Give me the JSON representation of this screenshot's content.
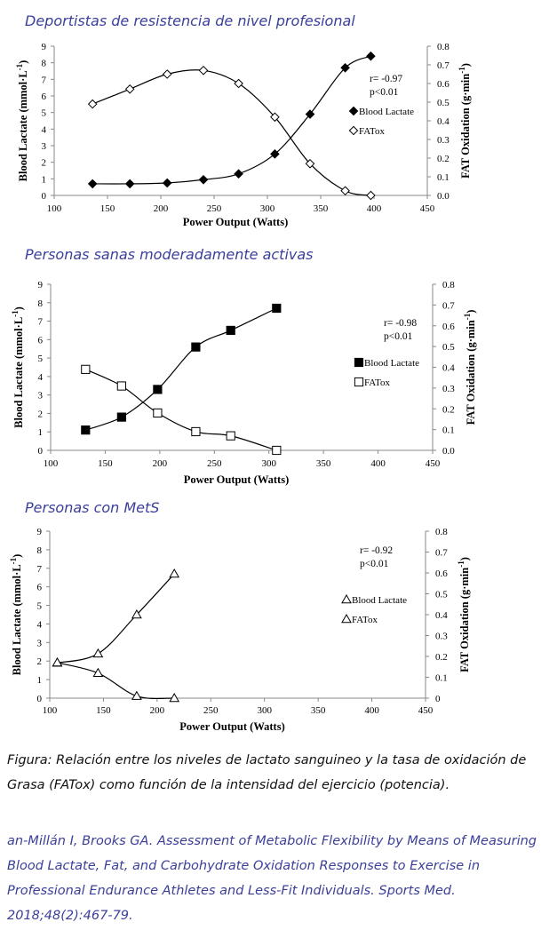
{
  "chart_data": [
    {
      "type": "line",
      "title": "Deportistas de resistencia de nivel profesional",
      "xlabel": "Power Output (Watts)",
      "ylabel": "Blood Lactate (mmol·L-1)",
      "y2label": "FAT Oxidation (g·min-1)",
      "xlim": [
        100,
        450
      ],
      "ylim": [
        0,
        9
      ],
      "y2lim": [
        0,
        0.8
      ],
      "x_ticks": [
        "100",
        "150",
        "200",
        "250",
        "300",
        "350",
        "400",
        "450"
      ],
      "y_ticks": [
        "0",
        "1",
        "2",
        "3",
        "4",
        "5",
        "6",
        "7",
        "8",
        "9"
      ],
      "y2_ticks": [
        "0.0",
        "0.1",
        "0.2",
        "0.3",
        "0.4",
        "0.5",
        "0.6",
        "0.7",
        "0.8"
      ],
      "stats": [
        "r= -0.97",
        "p<0.01"
      ],
      "legend_placement": "right",
      "series": [
        {
          "name": "Blood Lactate",
          "marker": "diamond-filled",
          "axis": "left",
          "x": [
            136,
            171,
            206,
            240,
            273,
            307,
            340,
            373,
            397
          ],
          "y": [
            0.7,
            0.7,
            0.75,
            0.95,
            1.3,
            2.5,
            4.9,
            7.7,
            8.4
          ]
        },
        {
          "name": "FATox",
          "marker": "diamond-open",
          "axis": "right",
          "x": [
            136,
            171,
            206,
            240,
            273,
            307,
            340,
            373,
            397
          ],
          "y": [
            0.49,
            0.57,
            0.65,
            0.67,
            0.6,
            0.42,
            0.17,
            0.025,
            0.0
          ]
        }
      ]
    },
    {
      "type": "line",
      "title": "Personas sanas moderadamente activas",
      "xlabel": "Power Output (Watts)",
      "ylabel": "Blood Lactate (mmol·L-1)",
      "y2label": "FAT Oxidation (g·min-1)",
      "xlim": [
        100,
        450
      ],
      "ylim": [
        0,
        9
      ],
      "y2lim": [
        0,
        0.8
      ],
      "x_ticks": [
        "100",
        "150",
        "200",
        "250",
        "300",
        "350",
        "400",
        "450"
      ],
      "y_ticks": [
        "0",
        "1",
        "2",
        "3",
        "4",
        "5",
        "6",
        "7",
        "8",
        "9"
      ],
      "y2_ticks": [
        "0.0",
        "0.1",
        "0.2",
        "0.3",
        "0.4",
        "0.5",
        "0.6",
        "0.7",
        "0.8"
      ],
      "stats": [
        "r= -0.98",
        "p<0.01"
      ],
      "legend_placement": "right",
      "series": [
        {
          "name": "Blood Lactate",
          "marker": "square-filled",
          "axis": "left",
          "x": [
            132,
            165,
            198,
            233,
            265,
            307
          ],
          "y": [
            1.1,
            1.8,
            3.3,
            5.6,
            6.5,
            7.7
          ]
        },
        {
          "name": "FATox",
          "marker": "square-open",
          "axis": "right",
          "x": [
            132,
            165,
            198,
            233,
            265,
            307
          ],
          "y": [
            0.39,
            0.31,
            0.18,
            0.09,
            0.07,
            0.0
          ]
        }
      ]
    },
    {
      "type": "line",
      "title": "Personas con MetS",
      "xlabel": "Power Output (Watts)",
      "ylabel": "Blood Lactate (mmol·L-1)",
      "y2label": "FAT Oxidation (g·min-1)",
      "xlim": [
        100,
        450
      ],
      "ylim": [
        0,
        9
      ],
      "y2lim": [
        0,
        0.8
      ],
      "x_ticks": [
        "100",
        "150",
        "200",
        "250",
        "300",
        "350",
        "400",
        "450"
      ],
      "y_ticks": [
        "0",
        "1",
        "2",
        "3",
        "4",
        "5",
        "6",
        "7",
        "8",
        "9"
      ],
      "y2_ticks": [
        "0",
        "0.1",
        "0.2",
        "0.3",
        "0.4",
        "0.5",
        "0.6",
        "0.7",
        "0.8"
      ],
      "stats": [
        "r= -0.92",
        "p<0.01"
      ],
      "legend_placement": "right",
      "series": [
        {
          "name": "Blood Lactate",
          "marker": "triangle-open",
          "axis": "left",
          "x": [
            107,
            145,
            181,
            216
          ],
          "y": [
            1.9,
            2.4,
            4.5,
            6.7
          ]
        },
        {
          "name": "FATox",
          "marker": "triangle-open",
          "axis": "right",
          "x": [
            107,
            145,
            181,
            216
          ],
          "y": [
            0.17,
            0.12,
            0.01,
            0.0
          ]
        }
      ]
    }
  ],
  "caption": "Figura: Relación entre los niveles de lactato sanguineo y la tasa de oxidación de Grasa (FATox) como función de la intensidad del ejercicio (potencia).",
  "reference": "an-Millán I, Brooks GA. Assessment of Metabolic Flexibility by Means of Measuring Blood Lactate, Fat, and Carbohydrate Oxidation Responses to Exercise in Professional Endurance Athletes and Less-Fit Individuals. Sports Med. 2018;48(2):467-79."
}
